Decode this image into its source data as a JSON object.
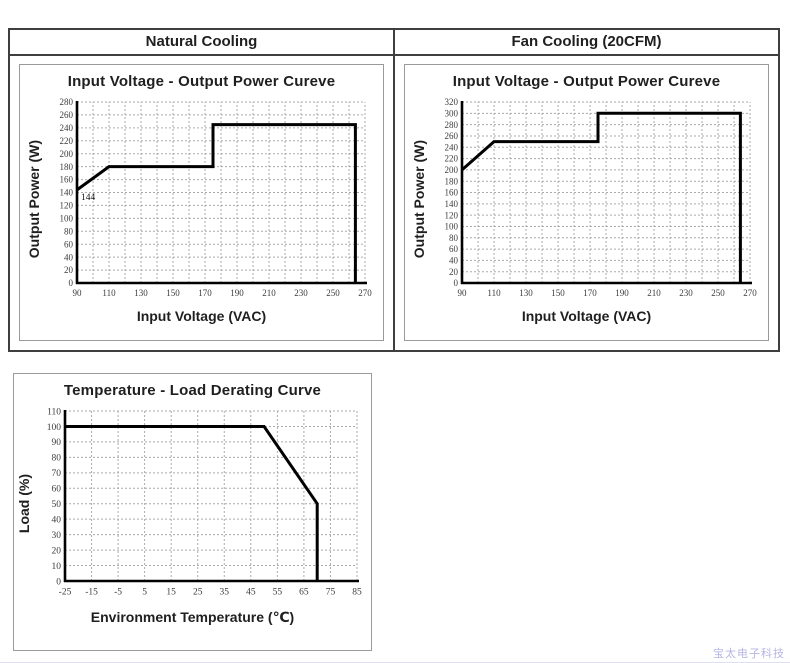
{
  "page": {
    "watermark": "宝太电子科技",
    "watermark_color": "#b6b6e3",
    "line_color": "#000000",
    "grid_color": "#aaaaaa"
  },
  "sections": {
    "natural": {
      "header": "Natural Cooling"
    },
    "fan": {
      "header": "Fan Cooling (20CFM)"
    }
  },
  "chart_data": [
    {
      "id": "natural",
      "type": "line",
      "title": "Input Voltage - Output Power Cureve",
      "xlabel": "Input Voltage (VAC)",
      "ylabel": "Output Power (W)",
      "xlim": [
        90,
        270
      ],
      "ylim": [
        0,
        280
      ],
      "x_tick_step": 20,
      "y_tick_step": 20,
      "x_grid_step": 10,
      "y_grid_step": 20,
      "grid": true,
      "legend": false,
      "line_color": "#000000",
      "points": [
        [
          90,
          144
        ],
        [
          110,
          180
        ],
        [
          175,
          180
        ],
        [
          175,
          245
        ],
        [
          264,
          245
        ],
        [
          264,
          0
        ]
      ],
      "annotations": [
        {
          "text": "144",
          "x": 90,
          "y": 144
        }
      ]
    },
    {
      "id": "fan",
      "type": "line",
      "title": "Input Voltage - Output Power Cureve",
      "xlabel": "Input Voltage (VAC)",
      "ylabel": "Output Power (W)",
      "xlim": [
        90,
        270
      ],
      "ylim": [
        0,
        320
      ],
      "x_tick_step": 20,
      "y_tick_step": 20,
      "x_grid_step": 10,
      "y_grid_step": 20,
      "grid": true,
      "legend": false,
      "line_color": "#000000",
      "points": [
        [
          90,
          200
        ],
        [
          110,
          250
        ],
        [
          175,
          250
        ],
        [
          175,
          300
        ],
        [
          264,
          300
        ],
        [
          264,
          0
        ]
      ],
      "annotations": []
    },
    {
      "id": "derating",
      "type": "line",
      "title": "Temperature - Load Derating Curve",
      "xlabel": "Environment Temperature (℃)",
      "ylabel": "Load (%)",
      "xlim": [
        -25,
        85
      ],
      "ylim": [
        0,
        110
      ],
      "x_tick_step": 10,
      "y_tick_step": 10,
      "x_grid_step": 10,
      "y_grid_step": 10,
      "grid": true,
      "legend": false,
      "line_color": "#000000",
      "points": [
        [
          -25,
          100
        ],
        [
          50,
          100
        ],
        [
          70,
          50
        ],
        [
          70,
          0
        ]
      ],
      "annotations": []
    }
  ]
}
